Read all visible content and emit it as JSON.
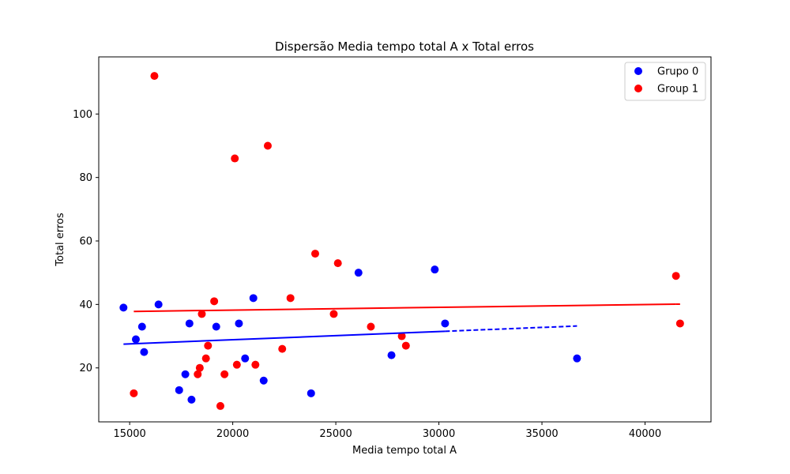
{
  "chart_data": {
    "type": "scatter",
    "title": "Dispersão Media tempo total A x Total erros",
    "xlabel": "Media tempo total A",
    "ylabel": "Total erros",
    "xlim": [
      13500,
      43200
    ],
    "ylim": [
      3,
      118
    ],
    "xticks": [
      15000,
      20000,
      25000,
      30000,
      35000,
      40000
    ],
    "yticks": [
      20,
      40,
      60,
      80,
      100
    ],
    "grid": false,
    "legend_position": "top-right",
    "series": [
      {
        "name": "Grupo 0",
        "color": "#0000ff",
        "points": [
          [
            14700,
            39
          ],
          [
            15300,
            29
          ],
          [
            15600,
            33
          ],
          [
            15700,
            25
          ],
          [
            16400,
            40
          ],
          [
            17400,
            13
          ],
          [
            17700,
            18
          ],
          [
            17900,
            34
          ],
          [
            18000,
            10
          ],
          [
            19200,
            33
          ],
          [
            20300,
            34
          ],
          [
            20600,
            23
          ],
          [
            21000,
            42
          ],
          [
            21500,
            16
          ],
          [
            23800,
            12
          ],
          [
            26100,
            50
          ],
          [
            27700,
            24
          ],
          [
            29800,
            51
          ],
          [
            30300,
            34
          ],
          [
            36700,
            23
          ]
        ],
        "trend": {
          "x": [
            14700,
            36700
          ],
          "y": [
            27.5,
            33.2
          ],
          "solid_until": 30300
        }
      },
      {
        "name": "Group 1",
        "color": "#ff0000",
        "points": [
          [
            15200,
            12
          ],
          [
            16200,
            112
          ],
          [
            18300,
            18
          ],
          [
            18400,
            20
          ],
          [
            18500,
            37
          ],
          [
            18700,
            23
          ],
          [
            18800,
            27
          ],
          [
            19100,
            41
          ],
          [
            19400,
            8
          ],
          [
            19600,
            18
          ],
          [
            20100,
            86
          ],
          [
            20200,
            21
          ],
          [
            21100,
            21
          ],
          [
            21700,
            90
          ],
          [
            22400,
            26
          ],
          [
            22800,
            42
          ],
          [
            24000,
            56
          ],
          [
            24900,
            37
          ],
          [
            25100,
            53
          ],
          [
            26700,
            33
          ],
          [
            28200,
            30
          ],
          [
            28400,
            27
          ],
          [
            41500,
            49
          ],
          [
            41700,
            34
          ]
        ],
        "trend": {
          "x": [
            15200,
            41700
          ],
          "y": [
            37.8,
            40.1
          ],
          "solid_until": 41500
        }
      }
    ]
  }
}
